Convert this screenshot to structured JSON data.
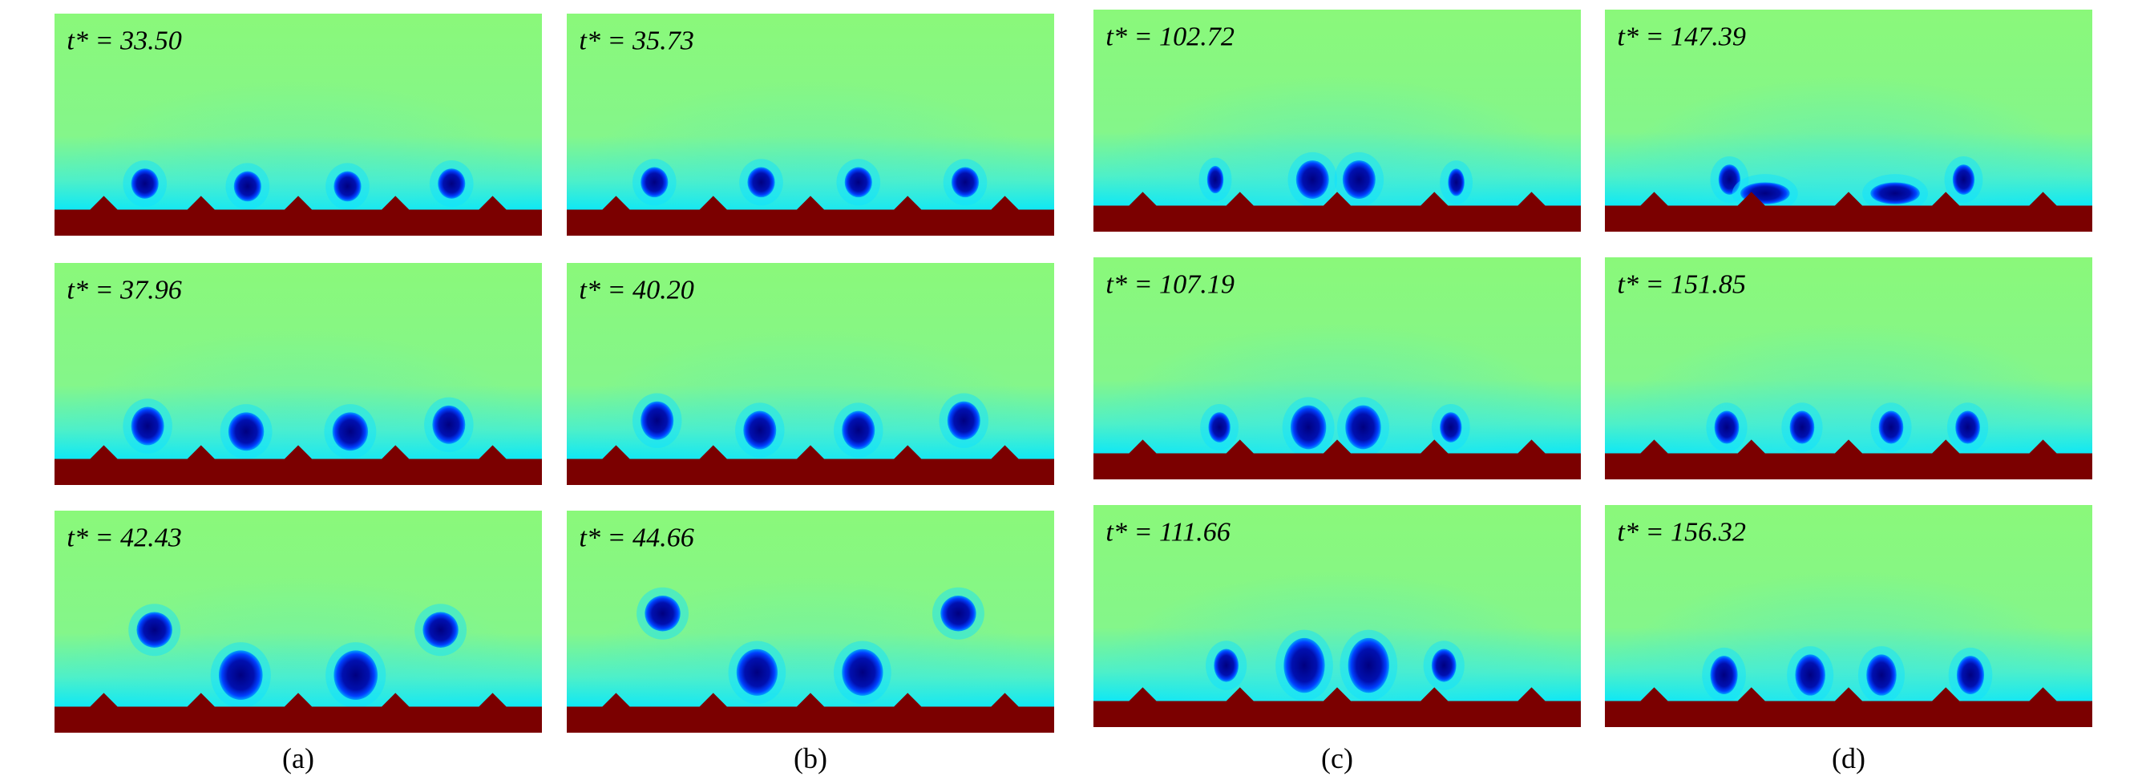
{
  "panels": [
    {
      "caption": "(a)",
      "frames": [
        "t* = 33.50",
        "t* = 37.96",
        "t* = 42.43"
      ]
    },
    {
      "caption": "(b)",
      "frames": [
        "t* = 35.73",
        "t* = 40.20",
        "t* = 44.66"
      ]
    },
    {
      "caption": "(c)",
      "frames": [
        "t* = 102.72",
        "t* = 107.19",
        "t* = 111.66"
      ]
    },
    {
      "caption": "(d)",
      "frames": [
        "t* = 147.39",
        "t* = 151.85",
        "t* = 156.32"
      ]
    }
  ]
}
